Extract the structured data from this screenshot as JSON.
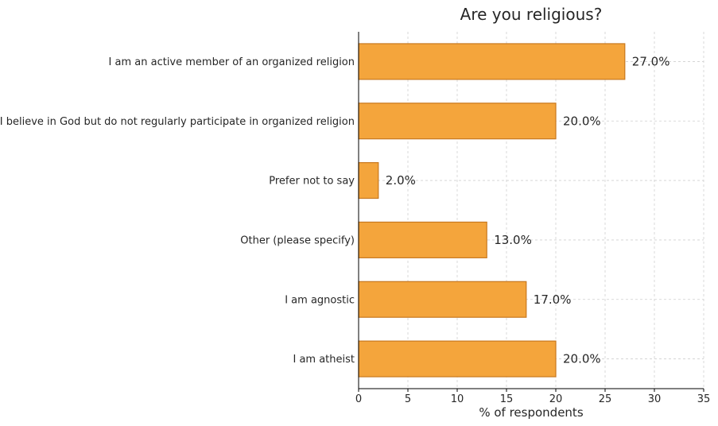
{
  "chart_data": {
    "type": "bar",
    "orientation": "horizontal",
    "title": "Are you religious?",
    "xlabel": "% of respondents",
    "ylabel": "",
    "categories": [
      "I am an active member of an organized religion",
      "I believe in God but do not regularly participate in organized religion",
      "Prefer not to say",
      "Other (please specify)",
      "I am agnostic",
      "I am atheist"
    ],
    "values": [
      27.0,
      20.0,
      2.0,
      13.0,
      17.0,
      20.0
    ],
    "value_labels": [
      "27.0%",
      "20.0%",
      "2.0%",
      "13.0%",
      "17.0%",
      "20.0%"
    ],
    "xlim": [
      0,
      35
    ],
    "xticks": [
      0,
      5,
      10,
      15,
      20,
      25,
      30,
      35
    ],
    "grid": true,
    "legend": "none"
  },
  "colors": {
    "bar_fill": "#F4A53C",
    "bar_edge": "#C8781E",
    "text": "#262626"
  }
}
